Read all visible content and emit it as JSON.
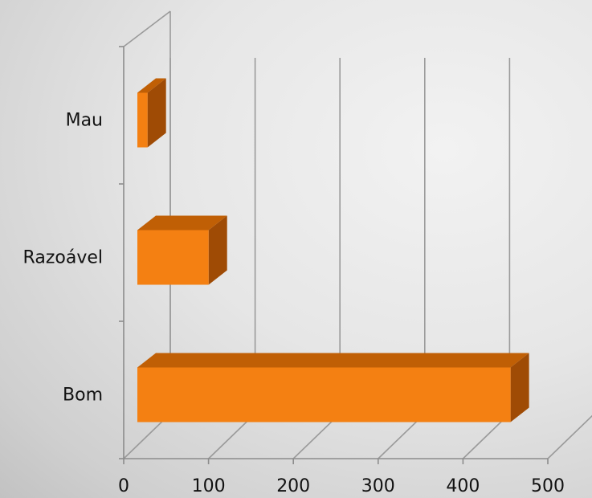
{
  "chart_data": {
    "type": "bar",
    "orientation": "horizontal",
    "three_d": true,
    "categories": [
      "Mau",
      "Razoável",
      "Bom"
    ],
    "values": [
      12,
      84,
      440
    ],
    "xlim": [
      0,
      500
    ],
    "xticks": [
      "0",
      "100",
      "200",
      "300",
      "400",
      "500"
    ],
    "title": "",
    "xlabel": "",
    "ylabel": "",
    "grid": true,
    "legend": "none",
    "colors": {
      "bar_front": "#f48012",
      "bar_top": "#c05f05",
      "bar_side": "#9f4b05",
      "gridline": "#9a9a9a",
      "axis": "#8c8c8c"
    }
  }
}
